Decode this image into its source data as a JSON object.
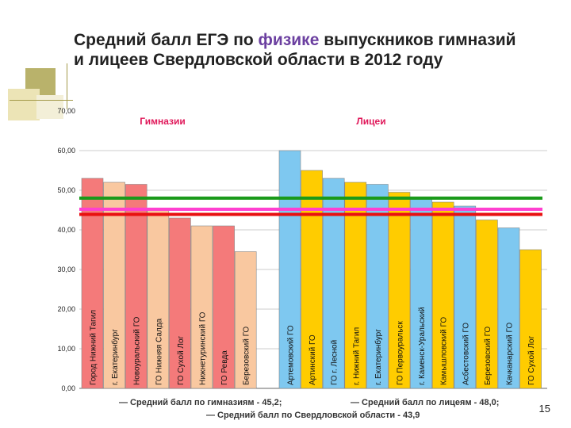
{
  "slide": {
    "title_pre": "Средний балл ЕГЭ по ",
    "title_hl": "физике",
    "title_post": " выпускников гимназий и лицеев Свердловской области в 2012 году",
    "page_number": "15",
    "colors": {
      "title_highlight": "#6b3fa0",
      "deco_olive": "#b9b26b",
      "deco_beige": "#ece4b6"
    }
  },
  "footnotes": {
    "gym_avg": "— Средний балл по гимназиям - 45,2;",
    "lyc_avg": "— Средний балл по лицеям - 48,0;",
    "region_avg": "— Средний балл по Свердловской области - 43,9"
  },
  "chart_data": {
    "type": "bar",
    "title": "Средний балл ЕГЭ по физике выпускников гимназий и лицеев Свердловской области в 2012 году",
    "ylim": [
      0,
      70
    ],
    "yticks": [
      "0,00",
      "10,00",
      "20,00",
      "30,00",
      "40,00",
      "50,00",
      "60,00",
      "70,00"
    ],
    "groups": [
      {
        "label": "Гимназии",
        "label_color": "#e0185a",
        "bars": [
          {
            "label": "Город Нижний Тагил",
            "value": 53.0,
            "color": "#f47a7a"
          },
          {
            "label": "г. Екатеринбург",
            "value": 52.0,
            "color": "#f9c8a0"
          },
          {
            "label": "Новоуральский ГО",
            "value": 51.5,
            "color": "#f47a7a"
          },
          {
            "label": "ГО Нижняя Салда",
            "value": 45.0,
            "color": "#f9c8a0"
          },
          {
            "label": "ГО Сухой Лог",
            "value": 43.0,
            "color": "#f47a7a"
          },
          {
            "label": "Нижнетуринский ГО",
            "value": 41.0,
            "color": "#f9c8a0"
          },
          {
            "label": "ГО Ревда",
            "value": 41.0,
            "color": "#f47a7a"
          },
          {
            "label": "Березовский ГО",
            "value": 34.5,
            "color": "#f9c8a0"
          }
        ]
      },
      {
        "label": "Лицеи",
        "label_color": "#e0185a",
        "bars": [
          {
            "label": "Артемовский ГО",
            "value": 60.0,
            "color": "#7ec8f0"
          },
          {
            "label": "Артинский ГО",
            "value": 55.0,
            "color": "#ffcc00"
          },
          {
            "label": "ГО г. Лесной",
            "value": 53.0,
            "color": "#7ec8f0"
          },
          {
            "label": "г. Нижний Тагил",
            "value": 52.0,
            "color": "#ffcc00"
          },
          {
            "label": "г. Екатеринбург",
            "value": 51.5,
            "color": "#7ec8f0"
          },
          {
            "label": "ГО Первоуральск",
            "value": 49.5,
            "color": "#ffcc00"
          },
          {
            "label": "г. Каменск-Уральский",
            "value": 48.0,
            "color": "#7ec8f0"
          },
          {
            "label": "Камышловский ГО",
            "value": 47.0,
            "color": "#ffcc00"
          },
          {
            "label": "Асбестовский ГО",
            "value": 46.0,
            "color": "#7ec8f0"
          },
          {
            "label": "Березовский ГО",
            "value": 42.5,
            "color": "#ffcc00"
          },
          {
            "label": "Качканарский ГО",
            "value": 40.5,
            "color": "#7ec8f0"
          },
          {
            "label": "ГО Сухой Лог",
            "value": 35.0,
            "color": "#ffcc00"
          }
        ]
      }
    ],
    "reference_lines": [
      {
        "label": "Средний балл по гимназиям",
        "value": 45.2,
        "color": "#ff3fd0"
      },
      {
        "label": "Средний балл по лицеям",
        "value": 48.0,
        "color": "#1a9a1a"
      },
      {
        "label": "Средний балл по Свердловской области",
        "value": 43.9,
        "color": "#e81010"
      }
    ]
  }
}
